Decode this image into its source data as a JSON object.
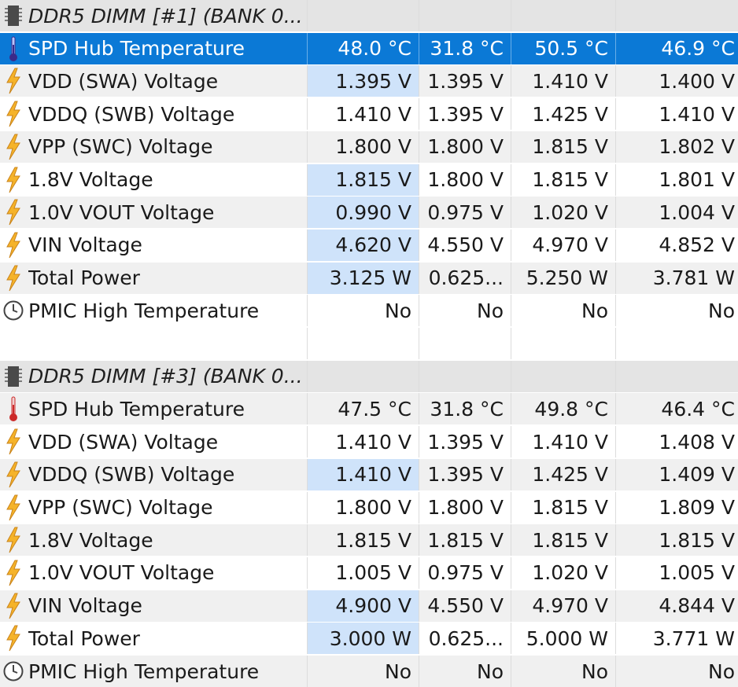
{
  "groups": [
    {
      "title": "DDR5 DIMM [#1] (BANK 0...",
      "icon": "memory-chip-icon",
      "rows": [
        {
          "label": "SPD Hub Temperature",
          "icon": "thermometer-icon",
          "selected": true,
          "values": [
            "48.0 °C",
            "31.8 °C",
            "50.5 °C",
            "46.9 °C"
          ],
          "highlight": false
        },
        {
          "label": "VDD (SWA) Voltage",
          "icon": "lightning-icon",
          "values": [
            "1.395 V",
            "1.395 V",
            "1.410 V",
            "1.400 V"
          ],
          "highlight": true
        },
        {
          "label": "VDDQ (SWB) Voltage",
          "icon": "lightning-icon",
          "values": [
            "1.410 V",
            "1.395 V",
            "1.425 V",
            "1.410 V"
          ],
          "highlight": false
        },
        {
          "label": "VPP (SWC) Voltage",
          "icon": "lightning-icon",
          "values": [
            "1.800 V",
            "1.800 V",
            "1.815 V",
            "1.802 V"
          ],
          "highlight": false
        },
        {
          "label": "1.8V Voltage",
          "icon": "lightning-icon",
          "values": [
            "1.815 V",
            "1.800 V",
            "1.815 V",
            "1.801 V"
          ],
          "highlight": true
        },
        {
          "label": "1.0V VOUT Voltage",
          "icon": "lightning-icon",
          "values": [
            "0.990 V",
            "0.975 V",
            "1.020 V",
            "1.004 V"
          ],
          "highlight": true
        },
        {
          "label": "VIN Voltage",
          "icon": "lightning-icon",
          "values": [
            "4.620 V",
            "4.550 V",
            "4.970 V",
            "4.852 V"
          ],
          "highlight": true
        },
        {
          "label": "Total Power",
          "icon": "lightning-icon",
          "values": [
            "3.125 W",
            "0.625...",
            "5.250 W",
            "3.781 W"
          ],
          "highlight": true
        },
        {
          "label": "PMIC High Temperature",
          "icon": "clock-icon",
          "values": [
            "No",
            "No",
            "No",
            "No"
          ],
          "highlight": false
        }
      ]
    },
    {
      "title": "DDR5 DIMM [#3] (BANK 0...",
      "icon": "memory-chip-icon",
      "rows": [
        {
          "label": "SPD Hub Temperature",
          "icon": "thermometer-icon",
          "values": [
            "47.5 °C",
            "31.8 °C",
            "49.8 °C",
            "46.4 °C"
          ],
          "highlight": false
        },
        {
          "label": "VDD (SWA) Voltage",
          "icon": "lightning-icon",
          "values": [
            "1.410 V",
            "1.395 V",
            "1.410 V",
            "1.408 V"
          ],
          "highlight": false
        },
        {
          "label": "VDDQ (SWB) Voltage",
          "icon": "lightning-icon",
          "values": [
            "1.410 V",
            "1.395 V",
            "1.425 V",
            "1.409 V"
          ],
          "highlight": true
        },
        {
          "label": "VPP (SWC) Voltage",
          "icon": "lightning-icon",
          "values": [
            "1.800 V",
            "1.800 V",
            "1.815 V",
            "1.809 V"
          ],
          "highlight": false
        },
        {
          "label": "1.8V Voltage",
          "icon": "lightning-icon",
          "values": [
            "1.815 V",
            "1.815 V",
            "1.815 V",
            "1.815 V"
          ],
          "highlight": false
        },
        {
          "label": "1.0V VOUT Voltage",
          "icon": "lightning-icon",
          "values": [
            "1.005 V",
            "0.975 V",
            "1.020 V",
            "1.005 V"
          ],
          "highlight": false
        },
        {
          "label": "VIN Voltage",
          "icon": "lightning-icon",
          "values": [
            "4.900 V",
            "4.550 V",
            "4.970 V",
            "4.844 V"
          ],
          "highlight": true
        },
        {
          "label": "Total Power",
          "icon": "lightning-icon",
          "values": [
            "3.000 W",
            "0.625...",
            "5.000 W",
            "3.771 W"
          ],
          "highlight": true
        },
        {
          "label": "PMIC High Temperature",
          "icon": "clock-icon",
          "values": [
            "No",
            "No",
            "No",
            "No"
          ],
          "highlight": false
        }
      ]
    }
  ],
  "colors": {
    "selected": "#0b79d6",
    "highlight": "#cfe3fa",
    "bolt": "#f5b32a",
    "thermo_red": "#cc2a2a",
    "thermo_purple": "#3b2a8a"
  }
}
